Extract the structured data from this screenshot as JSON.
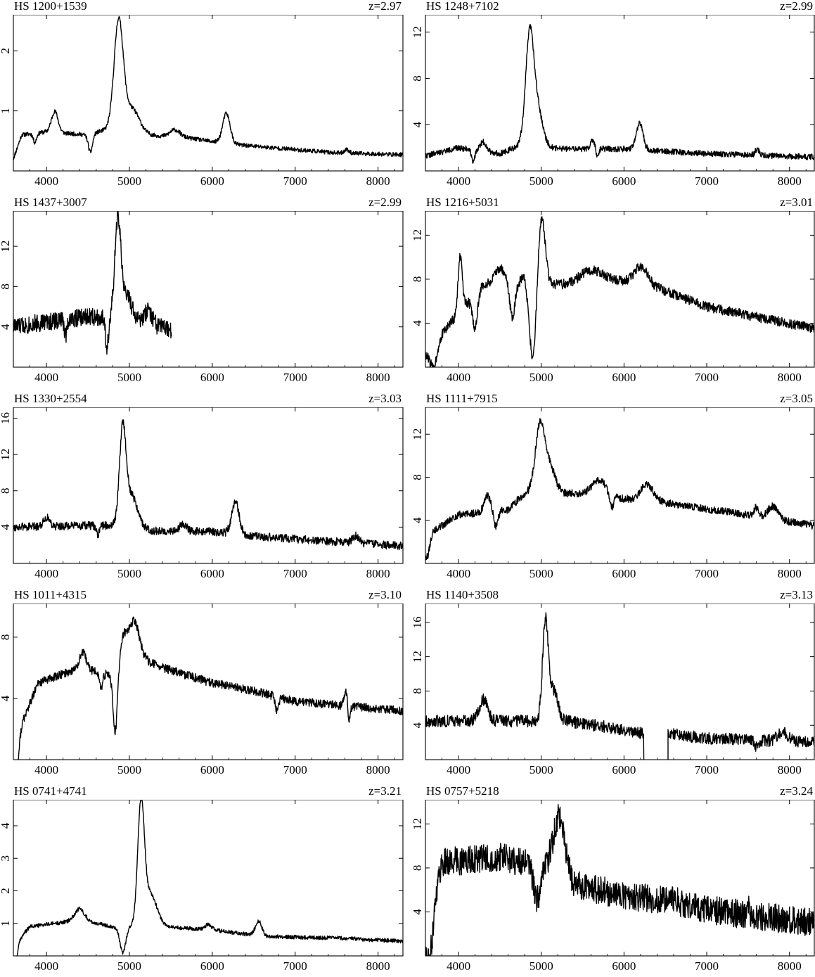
{
  "figure": {
    "x_ticks": [
      "4000",
      "5000",
      "6000",
      "7000",
      "8000"
    ]
  },
  "chart_data": [
    {
      "type": "line",
      "title": "HS 1200+1539",
      "redshift": "z=2.97",
      "xlim": [
        3600,
        8300
      ],
      "ylim": [
        0,
        2.6
      ],
      "yticks": [
        1,
        2
      ],
      "features": [
        [
          4870,
          1.8,
          55
        ],
        [
          5030,
          0.4,
          90
        ],
        [
          4100,
          0.35,
          40
        ],
        [
          6170,
          0.5,
          45
        ],
        [
          5550,
          0.12,
          60
        ],
        [
          7620,
          0.06,
          30
        ]
      ],
      "absorptions": [
        [
          4530,
          0.3,
          25
        ],
        [
          3860,
          0.15,
          20
        ]
      ],
      "cont": [
        [
          3600,
          0.2
        ],
        [
          3700,
          0.6
        ],
        [
          4000,
          0.65
        ],
        [
          4500,
          0.6
        ],
        [
          4750,
          0.7
        ],
        [
          5200,
          0.6
        ],
        [
          5700,
          0.55
        ],
        [
          6200,
          0.45
        ],
        [
          6600,
          0.4
        ],
        [
          7500,
          0.3
        ],
        [
          8300,
          0.27
        ]
      ],
      "noise": 0.035,
      "cutoff": null,
      "gap": null,
      "seed": 11
    },
    {
      "type": "line",
      "title": "HS 1248+7102",
      "redshift": "z=2.99",
      "xlim": [
        3600,
        8300
      ],
      "ylim": [
        0,
        13.5
      ],
      "yticks": [
        4,
        8,
        12
      ],
      "features": [
        [
          4860,
          9.5,
          50
        ],
        [
          4960,
          3.0,
          60
        ],
        [
          6190,
          2.3,
          40
        ],
        [
          4300,
          0.8,
          40
        ],
        [
          5620,
          0.8,
          25
        ],
        [
          7610,
          0.5,
          25
        ]
      ],
      "absorptions": [
        [
          4180,
          1.0,
          20
        ],
        [
          5680,
          0.8,
          15
        ]
      ],
      "cont": [
        [
          3600,
          1.3
        ],
        [
          4000,
          2.0
        ],
        [
          4500,
          1.5
        ],
        [
          4750,
          2.2
        ],
        [
          5300,
          1.9
        ],
        [
          6000,
          1.9
        ],
        [
          7000,
          1.5
        ],
        [
          8300,
          1.2
        ]
      ],
      "noise": 0.25,
      "cutoff": null,
      "gap": null,
      "seed": 22
    },
    {
      "type": "line",
      "title": "HS 1437+3007",
      "redshift": "z=2.99",
      "xlim": [
        3600,
        8300
      ],
      "ylim": [
        0,
        15.5
      ],
      "yticks": [
        4,
        8,
        12
      ],
      "features": [
        [
          4860,
          9.5,
          35
        ],
        [
          4960,
          2.5,
          60
        ],
        [
          5230,
          1.2,
          40
        ]
      ],
      "absorptions": [
        [
          4730,
          3.0,
          18
        ],
        [
          4230,
          1.5,
          15
        ]
      ],
      "cont": [
        [
          3600,
          4.0
        ],
        [
          4000,
          4.5
        ],
        [
          4500,
          5.0
        ],
        [
          4750,
          5.0
        ],
        [
          5200,
          4.5
        ],
        [
          5550,
          3.5
        ]
      ],
      "noise": 0.9,
      "cutoff": 5510,
      "gap": null,
      "seed": 33
    },
    {
      "type": "line",
      "title": "HS 1216+5031",
      "redshift": "z=3.01",
      "xlim": [
        3600,
        8300
      ],
      "ylim": [
        0,
        14.2
      ],
      "yticks": [
        4,
        8,
        12
      ],
      "features": [
        [
          4020,
          5.0,
          25
        ],
        [
          5000,
          6.5,
          45
        ],
        [
          4500,
          1.5,
          60
        ],
        [
          4800,
          1.0,
          40
        ],
        [
          6200,
          1.5,
          80
        ],
        [
          5600,
          1.0,
          120
        ]
      ],
      "absorptions": [
        [
          4900,
          7.0,
          45
        ],
        [
          3700,
          2.0,
          40
        ],
        [
          4200,
          3.0,
          30
        ],
        [
          4650,
          3.0,
          30
        ]
      ],
      "cont": [
        [
          3600,
          1.0
        ],
        [
          3900,
          4.0
        ],
        [
          4300,
          7.5
        ],
        [
          5200,
          7.5
        ],
        [
          5800,
          8.0
        ],
        [
          6300,
          7.5
        ],
        [
          7000,
          5.5
        ],
        [
          8300,
          3.5
        ]
      ],
      "noise": 0.45,
      "cutoff": null,
      "gap": null,
      "seed": 44
    },
    {
      "type": "line",
      "title": "HS 1330+2554",
      "redshift": "z=3.03",
      "xlim": [
        3600,
        8300
      ],
      "ylim": [
        0,
        17.2
      ],
      "yticks": [
        4,
        8,
        12,
        16
      ],
      "features": [
        [
          4920,
          10.5,
          40
        ],
        [
          5030,
          3.5,
          70
        ],
        [
          6280,
          3.5,
          45
        ],
        [
          5650,
          0.8,
          40
        ],
        [
          7730,
          0.8,
          40
        ],
        [
          4000,
          1.0,
          40
        ]
      ],
      "absorptions": [
        [
          4620,
          1.0,
          20
        ]
      ],
      "cont": [
        [
          3600,
          4.0
        ],
        [
          4800,
          4.2
        ],
        [
          5300,
          3.6
        ],
        [
          6000,
          3.5
        ],
        [
          6500,
          3.0
        ],
        [
          7500,
          2.4
        ],
        [
          8300,
          1.9
        ]
      ],
      "noise": 0.45,
      "cutoff": null,
      "gap": null,
      "seed": 55
    },
    {
      "type": "line",
      "title": "HS 1111+7915",
      "redshift": "z=3.05",
      "xlim": [
        3600,
        8300
      ],
      "ylim": [
        0,
        14.5
      ],
      "yticks": [
        4,
        8,
        12
      ],
      "features": [
        [
          4990,
          6.5,
          60
        ],
        [
          5120,
          2.0,
          60
        ],
        [
          5700,
          1.5,
          90
        ],
        [
          6280,
          1.5,
          80
        ],
        [
          4350,
          1.5,
          40
        ],
        [
          7800,
          1.2,
          60
        ],
        [
          7600,
          0.8,
          30
        ]
      ],
      "absorptions": [
        [
          3620,
          2.0,
          30
        ],
        [
          4450,
          1.5,
          25
        ],
        [
          5850,
          1.2,
          25
        ]
      ],
      "cont": [
        [
          3600,
          2.5
        ],
        [
          4000,
          4.5
        ],
        [
          4600,
          5.0
        ],
        [
          4800,
          6.5
        ],
        [
          5400,
          6.5
        ],
        [
          6000,
          6.0
        ],
        [
          6600,
          5.5
        ],
        [
          7500,
          4.5
        ],
        [
          8300,
          3.5
        ]
      ],
      "noise": 0.35,
      "cutoff": null,
      "gap": null,
      "seed": 66
    },
    {
      "type": "line",
      "title": "HS 1011+4315",
      "redshift": "z=3.10",
      "xlim": [
        3600,
        8300
      ],
      "ylim": [
        0,
        10.2
      ],
      "yticks": [
        4,
        8
      ],
      "features": [
        [
          5060,
          2.2,
          60
        ],
        [
          4930,
          1.5,
          40
        ],
        [
          4440,
          1.0,
          40
        ],
        [
          7610,
          1.0,
          20
        ]
      ],
      "absorptions": [
        [
          4830,
          4.0,
          25
        ],
        [
          3630,
          3.0,
          30
        ],
        [
          4660,
          1.0,
          20
        ],
        [
          6780,
          1.0,
          20
        ],
        [
          7650,
          1.0,
          15
        ]
      ],
      "cont": [
        [
          3600,
          1.0
        ],
        [
          3900,
          5.0
        ],
        [
          4400,
          6.0
        ],
        [
          4800,
          5.5
        ],
        [
          5000,
          7.0
        ],
        [
          5400,
          6.0
        ],
        [
          6000,
          5.0
        ],
        [
          6500,
          4.5
        ],
        [
          7000,
          3.8
        ],
        [
          8300,
          3.2
        ]
      ],
      "noise": 0.28,
      "cutoff": null,
      "gap": null,
      "seed": 77
    },
    {
      "type": "line",
      "title": "HS 1140+3508",
      "redshift": "z=3.13",
      "xlim": [
        3600,
        8300
      ],
      "ylim": [
        0,
        18.2
      ],
      "yticks": [
        4,
        8,
        12,
        16
      ],
      "features": [
        [
          5050,
          11.5,
          35
        ],
        [
          5150,
          3.5,
          50
        ],
        [
          4300,
          2.5,
          50
        ],
        [
          7920,
          1.0,
          60
        ]
      ],
      "absorptions": [
        [
          7600,
          0.8,
          25
        ]
      ],
      "cont": [
        [
          3600,
          4.5
        ],
        [
          4600,
          4.5
        ],
        [
          5300,
          4.5
        ],
        [
          6000,
          3.5
        ],
        [
          6250,
          3.0
        ],
        [
          6550,
          3.0
        ],
        [
          7000,
          2.5
        ],
        [
          8300,
          2.0
        ]
      ],
      "noise": 0.7,
      "cutoff": null,
      "gap": [
        6240,
        6530
      ],
      "seed": 88
    },
    {
      "type": "line",
      "title": "HS 0741+4741",
      "redshift": "z=3.21",
      "xlim": [
        3600,
        8300
      ],
      "ylim": [
        0,
        4.8
      ],
      "yticks": [
        1,
        2,
        3,
        4
      ],
      "features": [
        [
          5140,
          3.6,
          40
        ],
        [
          5250,
          1.0,
          80
        ],
        [
          6560,
          0.45,
          40
        ],
        [
          5950,
          0.15,
          40
        ],
        [
          4400,
          0.35,
          60
        ]
      ],
      "absorptions": [
        [
          4920,
          0.8,
          35
        ],
        [
          3620,
          0.6,
          30
        ]
      ],
      "cont": [
        [
          3600,
          0.3
        ],
        [
          3800,
          0.9
        ],
        [
          4400,
          1.1
        ],
        [
          4800,
          0.9
        ],
        [
          5400,
          0.9
        ],
        [
          6000,
          0.8
        ],
        [
          6600,
          0.6
        ],
        [
          7500,
          0.55
        ],
        [
          8300,
          0.45
        ]
      ],
      "noise": 0.06,
      "cutoff": null,
      "gap": null,
      "seed": 99
    },
    {
      "type": "line",
      "title": "HS 0757+5218",
      "redshift": "z=3.24",
      "xlim": [
        3600,
        8300
      ],
      "ylim": [
        0,
        14.2
      ],
      "yticks": [
        4,
        8,
        12
      ],
      "features": [
        [
          5220,
          3.5,
          60
        ],
        [
          7500,
          1.5,
          10
        ]
      ],
      "absorptions": [
        [
          4950,
          3.0,
          40
        ],
        [
          3650,
          4.0,
          40
        ]
      ],
      "cont": [
        [
          3600,
          2.0
        ],
        [
          3800,
          8.5
        ],
        [
          4500,
          9.0
        ],
        [
          5000,
          8.0
        ],
        [
          5200,
          9.5
        ],
        [
          5400,
          6.5
        ],
        [
          6000,
          5.5
        ],
        [
          6600,
          5.0
        ],
        [
          7000,
          4.2
        ],
        [
          8300,
          3.0
        ]
      ],
      "noise": 1.3,
      "cutoff": null,
      "gap": null,
      "seed": 111
    }
  ]
}
